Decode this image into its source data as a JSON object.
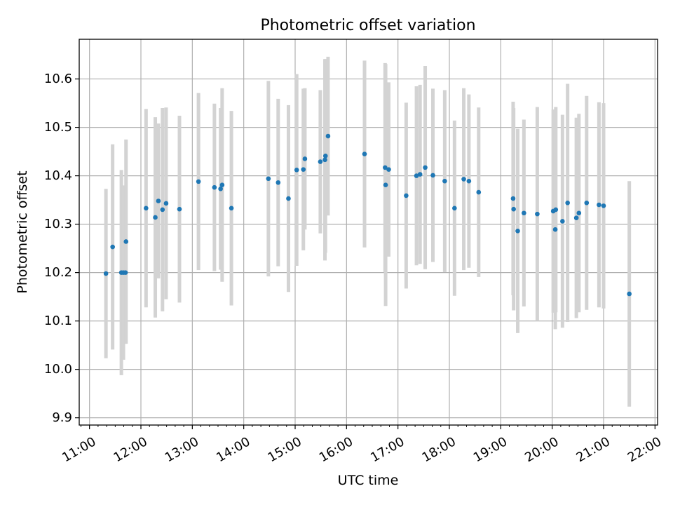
{
  "chart_data": {
    "type": "scatter",
    "title": "Photometric offset variation",
    "xlabel": "UTC time",
    "ylabel": "Photometric offset",
    "x_unit": "decimal hours UTC",
    "xlim": [
      10.8,
      22.05
    ],
    "ylim": [
      9.885,
      10.682
    ],
    "x_ticks": [
      11,
      12,
      13,
      14,
      15,
      16,
      17,
      18,
      19,
      20,
      21,
      22
    ],
    "x_tick_labels": [
      "11:00",
      "12:00",
      "13:00",
      "14:00",
      "15:00",
      "16:00",
      "17:00",
      "18:00",
      "19:00",
      "20:00",
      "21:00",
      "22:00"
    ],
    "y_ticks": [
      9.9,
      10.0,
      10.1,
      10.2,
      10.3,
      10.4,
      10.5,
      10.6
    ],
    "y_tick_labels": [
      "9.9",
      "10.0",
      "10.1",
      "10.2",
      "10.3",
      "10.4",
      "10.5",
      "10.6"
    ],
    "grid": true,
    "colors": {
      "points": "#1f77b4",
      "errorbars": "#d3d3d3",
      "grid": "#b0b0b0"
    },
    "series": [
      {
        "x": [
          11.32,
          11.45,
          11.62,
          11.66,
          11.7,
          11.71,
          12.1,
          12.28,
          12.34,
          12.42,
          12.49,
          12.75,
          13.12,
          13.43,
          13.55,
          13.58,
          13.76,
          14.48,
          14.67,
          14.87,
          15.03,
          15.16,
          15.19,
          15.49,
          15.58,
          15.59,
          15.64,
          16.35,
          16.75,
          16.76,
          16.82,
          17.16,
          17.36,
          17.43,
          17.53,
          17.68,
          17.91,
          18.1,
          18.28,
          18.38,
          18.57,
          19.24,
          19.25,
          19.33,
          19.45,
          19.71,
          20.02,
          20.06,
          20.07,
          20.2,
          20.3,
          20.47,
          20.52,
          20.67,
          20.91,
          21.0,
          21.5
        ],
        "y": [
          10.198,
          10.253,
          10.2,
          10.2,
          10.2,
          10.264,
          10.333,
          10.314,
          10.348,
          10.33,
          10.343,
          10.331,
          10.388,
          10.376,
          10.373,
          10.381,
          10.333,
          10.394,
          10.386,
          10.353,
          10.412,
          10.413,
          10.435,
          10.429,
          10.433,
          10.441,
          10.482,
          10.445,
          10.417,
          10.381,
          10.413,
          10.359,
          10.4,
          10.403,
          10.417,
          10.401,
          10.389,
          10.333,
          10.393,
          10.389,
          10.366,
          10.353,
          10.331,
          10.286,
          10.323,
          10.321,
          10.327,
          10.289,
          10.33,
          10.306,
          10.344,
          10.313,
          10.323,
          10.344,
          10.34,
          10.338,
          10.156
        ],
        "err": [
          0.175,
          0.212,
          0.212,
          0.18,
          0.147,
          0.211,
          0.205,
          0.207,
          0.16,
          0.21,
          0.198,
          0.193,
          0.183,
          0.173,
          0.167,
          0.2,
          0.201,
          0.202,
          0.173,
          0.193,
          0.198,
          0.167,
          0.146,
          0.148,
          0.208,
          0.2,
          0.164,
          0.193,
          0.216,
          0.25,
          0.18,
          0.192,
          0.185,
          0.185,
          0.21,
          0.179,
          0.188,
          0.181,
          0.188,
          0.179,
          0.175,
          0.2,
          0.209,
          0.211,
          0.193,
          0.221,
          0.21,
          0.206,
          0.212,
          0.22,
          0.246,
          0.207,
          0.205,
          0.221,
          0.212,
          0.212,
          0.233
        ]
      }
    ]
  }
}
